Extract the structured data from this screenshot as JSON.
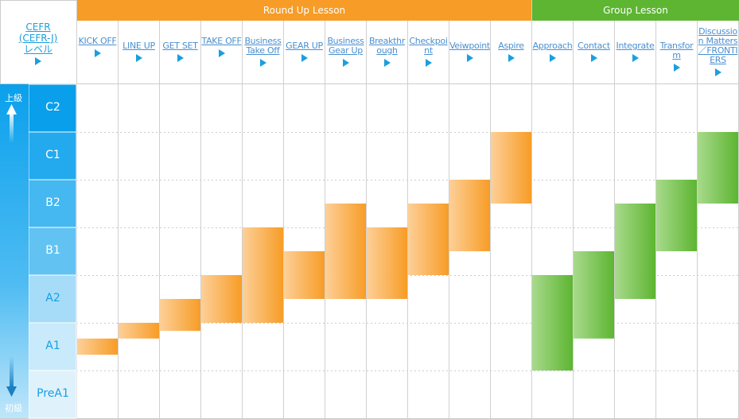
{
  "corner": {
    "line1": "CEFR",
    "line2": "(CEFR-J)",
    "line3": "レベル"
  },
  "side": {
    "top_label": "上級",
    "bottom_label": "初級"
  },
  "colors": {
    "orange": "#f79c26",
    "green": "#5db531",
    "blue": "#1aa0e6"
  },
  "chart_data": {
    "type": "range-bar",
    "groups": [
      {
        "name": "Round Up Lesson",
        "color": "#f79c26"
      },
      {
        "name": "Group Lesson",
        "color": "#5db531"
      }
    ],
    "levels": [
      "PreA1",
      "A1",
      "A2",
      "B1",
      "B2",
      "C1",
      "C2"
    ],
    "lessons": [
      {
        "name": "KICK OFF",
        "group": 0,
        "from": 1.33,
        "to": 1.67
      },
      {
        "name": "LINE UP",
        "group": 0,
        "from": 1.67,
        "to": 2.0
      },
      {
        "name": "GET SET",
        "group": 0,
        "from": 1.83,
        "to": 2.5
      },
      {
        "name": "TAKE OFF",
        "group": 0,
        "from": 2.0,
        "to": 3.0
      },
      {
        "name": "Business Take Off",
        "group": 0,
        "from": 2.0,
        "to": 4.0
      },
      {
        "name": "GEAR UP",
        "group": 0,
        "from": 2.5,
        "to": 3.5
      },
      {
        "name": "Business Gear Up",
        "group": 0,
        "from": 2.5,
        "to": 4.5
      },
      {
        "name": "Breakthrough",
        "group": 0,
        "from": 2.5,
        "to": 4.0
      },
      {
        "name": "Checkpoint",
        "group": 0,
        "from": 3.0,
        "to": 4.5
      },
      {
        "name": "Veiwpoint",
        "group": 0,
        "from": 3.5,
        "to": 5.0
      },
      {
        "name": "Aspire",
        "group": 0,
        "from": 4.5,
        "to": 6.0
      },
      {
        "name": "Approach",
        "group": 1,
        "from": 1.0,
        "to": 3.0
      },
      {
        "name": "Contact",
        "group": 1,
        "from": 1.67,
        "to": 3.5
      },
      {
        "name": "Integrate",
        "group": 1,
        "from": 2.5,
        "to": 4.5
      },
      {
        "name": "Transform",
        "group": 1,
        "from": 3.5,
        "to": 5.0
      },
      {
        "name": "Discussion Matters／FRONTIERS",
        "group": 1,
        "from": 4.5,
        "to": 6.0
      }
    ]
  }
}
